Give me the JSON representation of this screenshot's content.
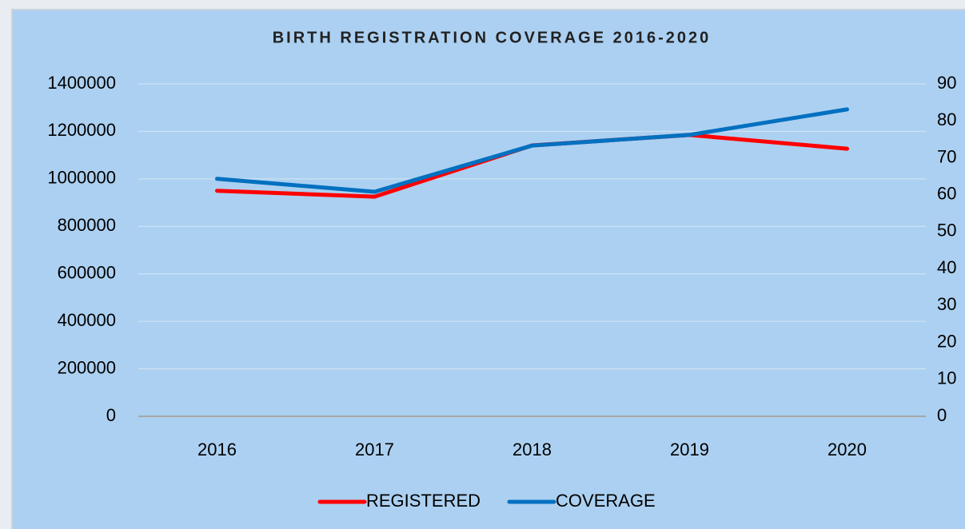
{
  "chart_data": {
    "type": "line",
    "title": "BIRTH REGISTRATION COVERAGE 2016-2020",
    "categories": [
      "2016",
      "2017",
      "2018",
      "2019",
      "2020"
    ],
    "series": [
      {
        "name": "REGISTERED",
        "color": "#ff0000",
        "values": [
          950000,
          925000,
          1141000,
          1185000,
          1127000
        ]
      },
      {
        "name": "COVERAGE",
        "color": "#0070c0",
        "axis": "y2",
        "values": [
          64.3,
          60.8,
          73.3,
          76.2,
          83.1
        ]
      }
    ],
    "ylim": [
      0,
      1400000
    ],
    "yticks": [
      0,
      200000,
      400000,
      600000,
      800000,
      1000000,
      1200000,
      1400000
    ],
    "y2lim": [
      0,
      90
    ],
    "y2ticks": [
      0,
      10,
      20,
      30,
      40,
      50,
      60,
      70,
      80,
      90
    ],
    "grid": true,
    "legend": "bottom"
  }
}
